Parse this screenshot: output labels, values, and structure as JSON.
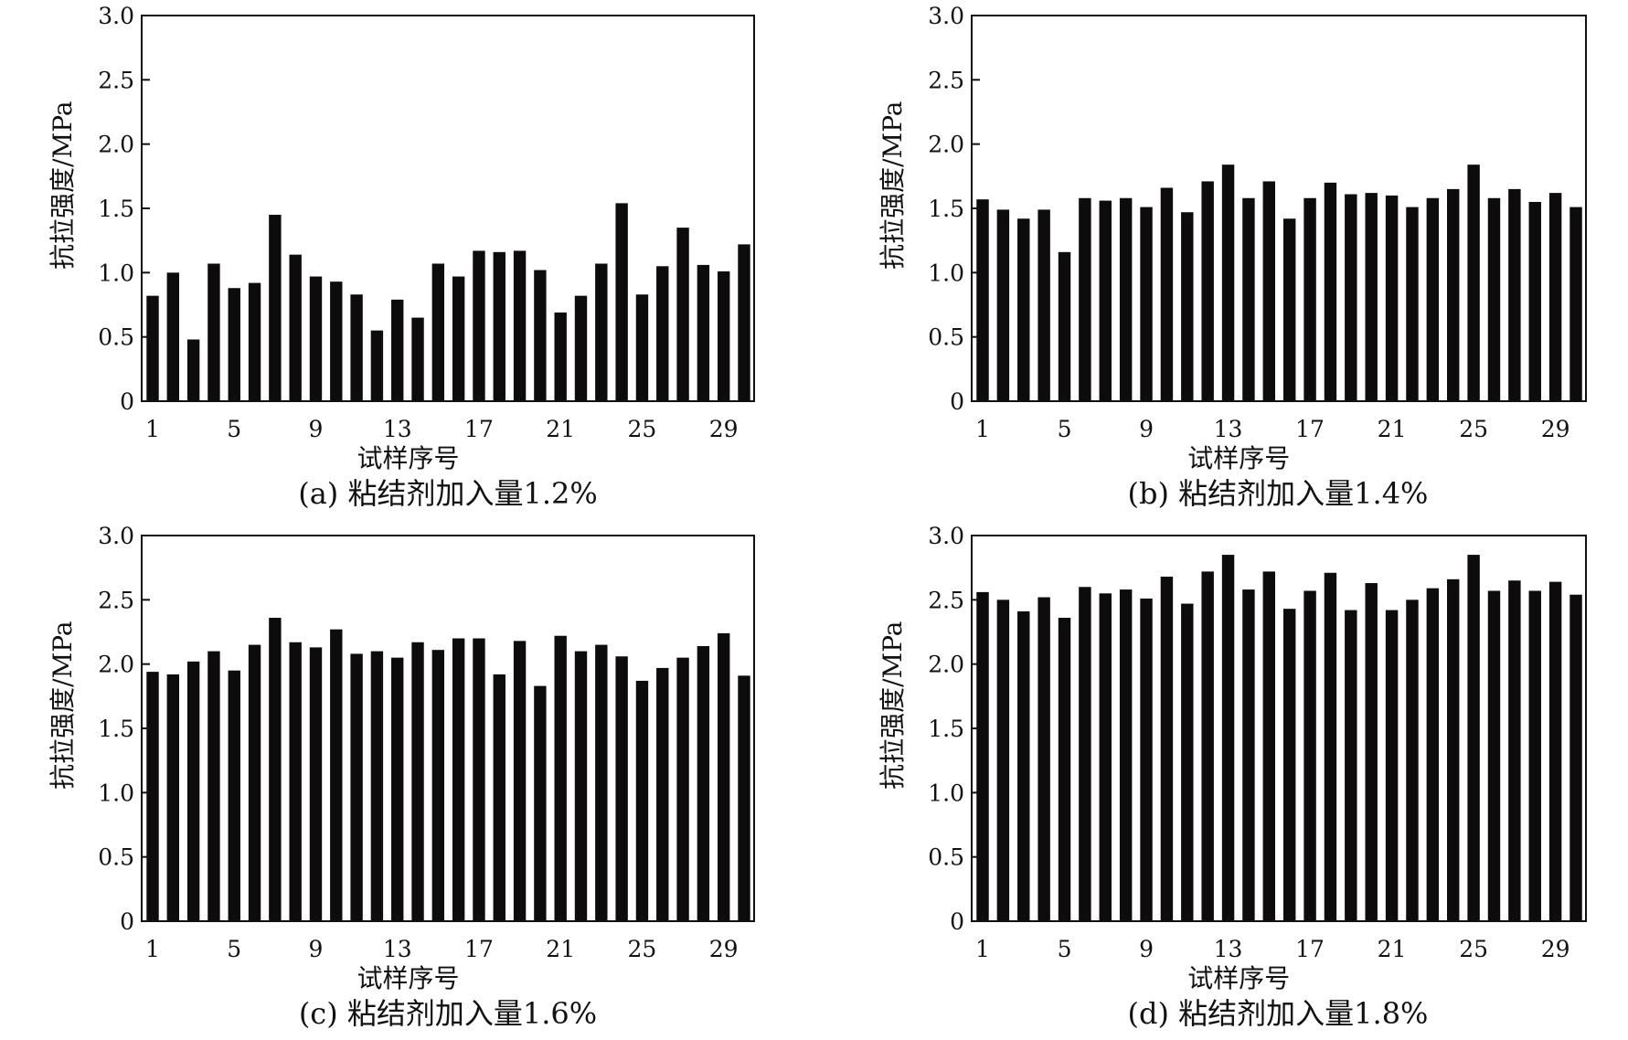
{
  "chart_data": [
    {
      "type": "bar",
      "panel": "a",
      "caption": "(a) 粘结剂加入量1.2%",
      "xlabel": "试样序号",
      "ylabel": "抗拉强度/MPa",
      "ylim": [
        0,
        3.0
      ],
      "yticks": [
        "0",
        "0.5",
        "1.0",
        "1.5",
        "2.0",
        "2.5",
        "3.0"
      ],
      "xticks": [
        "1",
        "5",
        "9",
        "13",
        "17",
        "21",
        "25",
        "29"
      ],
      "categories": [
        1,
        2,
        3,
        4,
        5,
        6,
        7,
        8,
        9,
        10,
        11,
        12,
        13,
        14,
        15,
        16,
        17,
        18,
        19,
        20,
        21,
        22,
        23,
        24,
        25,
        26,
        27,
        28,
        29,
        30
      ],
      "values": [
        0.82,
        1.0,
        0.48,
        1.07,
        0.88,
        0.92,
        1.45,
        1.14,
        0.97,
        0.93,
        0.83,
        0.55,
        0.79,
        0.65,
        1.07,
        0.97,
        1.17,
        1.16,
        1.17,
        1.02,
        0.69,
        0.82,
        1.07,
        1.54,
        0.83,
        1.05,
        1.35,
        1.06,
        1.01,
        1.22
      ]
    },
    {
      "type": "bar",
      "panel": "b",
      "caption": "(b) 粘结剂加入量1.4%",
      "xlabel": "试样序号",
      "ylabel": "抗拉强度/MPa",
      "ylim": [
        0,
        3.0
      ],
      "yticks": [
        "0",
        "0.5",
        "1.0",
        "1.5",
        "2.0",
        "2.5",
        "3.0"
      ],
      "xticks": [
        "1",
        "5",
        "9",
        "13",
        "17",
        "21",
        "25",
        "29"
      ],
      "categories": [
        1,
        2,
        3,
        4,
        5,
        6,
        7,
        8,
        9,
        10,
        11,
        12,
        13,
        14,
        15,
        16,
        17,
        18,
        19,
        20,
        21,
        22,
        23,
        24,
        25,
        26,
        27,
        28,
        29,
        30
      ],
      "values": [
        1.57,
        1.49,
        1.42,
        1.49,
        1.16,
        1.58,
        1.56,
        1.58,
        1.51,
        1.66,
        1.47,
        1.71,
        1.84,
        1.58,
        1.71,
        1.42,
        1.58,
        1.7,
        1.61,
        1.62,
        1.6,
        1.51,
        1.58,
        1.65,
        1.84,
        1.58,
        1.65,
        1.55,
        1.62,
        1.51
      ]
    },
    {
      "type": "bar",
      "panel": "c",
      "caption": "(c) 粘结剂加入量1.6%",
      "xlabel": "试样序号",
      "ylabel": "抗拉强度/MPa",
      "ylim": [
        0,
        3.0
      ],
      "yticks": [
        "0",
        "0.5",
        "1.0",
        "1.5",
        "2.0",
        "2.5",
        "3.0"
      ],
      "xticks": [
        "1",
        "5",
        "9",
        "13",
        "17",
        "21",
        "25",
        "29"
      ],
      "categories": [
        1,
        2,
        3,
        4,
        5,
        6,
        7,
        8,
        9,
        10,
        11,
        12,
        13,
        14,
        15,
        16,
        17,
        18,
        19,
        20,
        21,
        22,
        23,
        24,
        25,
        26,
        27,
        28,
        29,
        30
      ],
      "values": [
        1.94,
        1.92,
        2.02,
        2.1,
        1.95,
        2.15,
        2.36,
        2.17,
        2.13,
        2.27,
        2.08,
        2.1,
        2.05,
        2.17,
        2.11,
        2.2,
        2.2,
        1.92,
        2.18,
        1.83,
        2.22,
        2.1,
        2.15,
        2.06,
        1.87,
        1.97,
        2.05,
        2.14,
        2.24,
        1.91
      ]
    },
    {
      "type": "bar",
      "panel": "d",
      "caption": "(d) 粘结剂加入量1.8%",
      "xlabel": "试样序号",
      "ylabel": "抗拉强度/MPa",
      "ylim": [
        0,
        3.0
      ],
      "yticks": [
        "0",
        "0.5",
        "1.0",
        "1.5",
        "2.0",
        "2.5",
        "3.0"
      ],
      "xticks": [
        "1",
        "5",
        "9",
        "13",
        "17",
        "21",
        "25",
        "29"
      ],
      "categories": [
        1,
        2,
        3,
        4,
        5,
        6,
        7,
        8,
        9,
        10,
        11,
        12,
        13,
        14,
        15,
        16,
        17,
        18,
        19,
        20,
        21,
        22,
        23,
        24,
        25,
        26,
        27,
        28,
        29,
        30
      ],
      "values": [
        2.56,
        2.5,
        2.41,
        2.52,
        2.36,
        2.6,
        2.55,
        2.58,
        2.51,
        2.68,
        2.47,
        2.72,
        2.85,
        2.58,
        2.72,
        2.43,
        2.57,
        2.71,
        2.42,
        2.63,
        2.42,
        2.5,
        2.59,
        2.66,
        2.85,
        2.57,
        2.65,
        2.57,
        2.64,
        2.54
      ]
    }
  ],
  "colors": {
    "bar": "#0d0b0b",
    "axis": "#111111",
    "background": "#ffffff"
  }
}
